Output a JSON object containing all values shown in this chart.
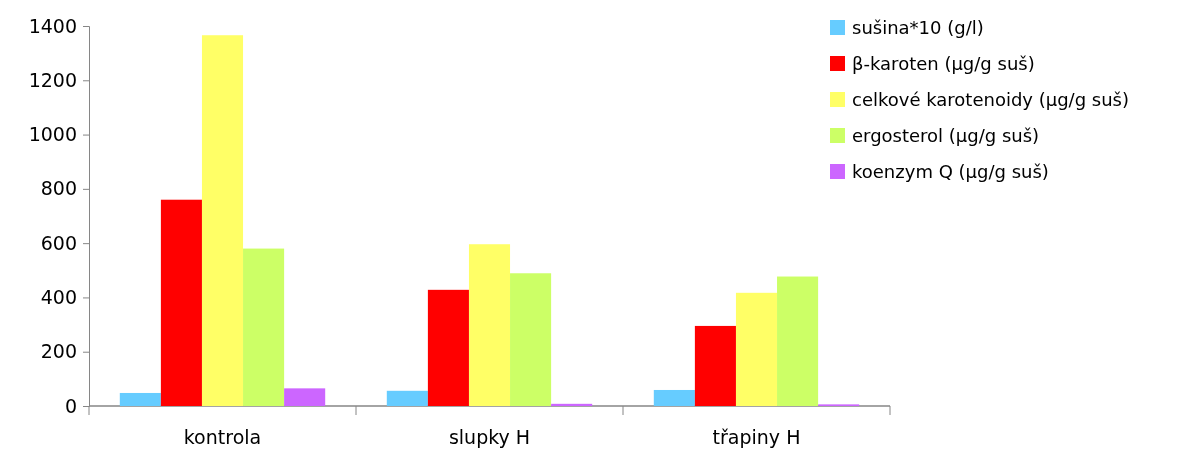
{
  "chart_data": {
    "type": "bar",
    "categories": [
      "kontrola",
      "slupky H",
      "třapiny H"
    ],
    "series": [
      {
        "name": "sušina*10 (g/l)",
        "color": "#66ccff",
        "values": [
          48,
          56,
          59
        ]
      },
      {
        "name": "β-karoten (µg/g suš)",
        "color": "#ff0000",
        "values": [
          760,
          428,
          295
        ]
      },
      {
        "name": "celkové karotenoidy (µg/g suš)",
        "color": "#ffff66",
        "values": [
          1366,
          596,
          417
        ]
      },
      {
        "name": "ergosterol (µg/g suš)",
        "color": "#ccff66",
        "values": [
          580,
          489,
          477
        ]
      },
      {
        "name": "koenzym Q (µg/g suš)",
        "color": "#cc66ff",
        "values": [
          65,
          8,
          6
        ]
      }
    ],
    "ylim": [
      0,
      1400
    ],
    "yticks": [
      0,
      200,
      400,
      600,
      800,
      1000,
      1200,
      1400
    ],
    "grid": false,
    "legend": "top right"
  }
}
